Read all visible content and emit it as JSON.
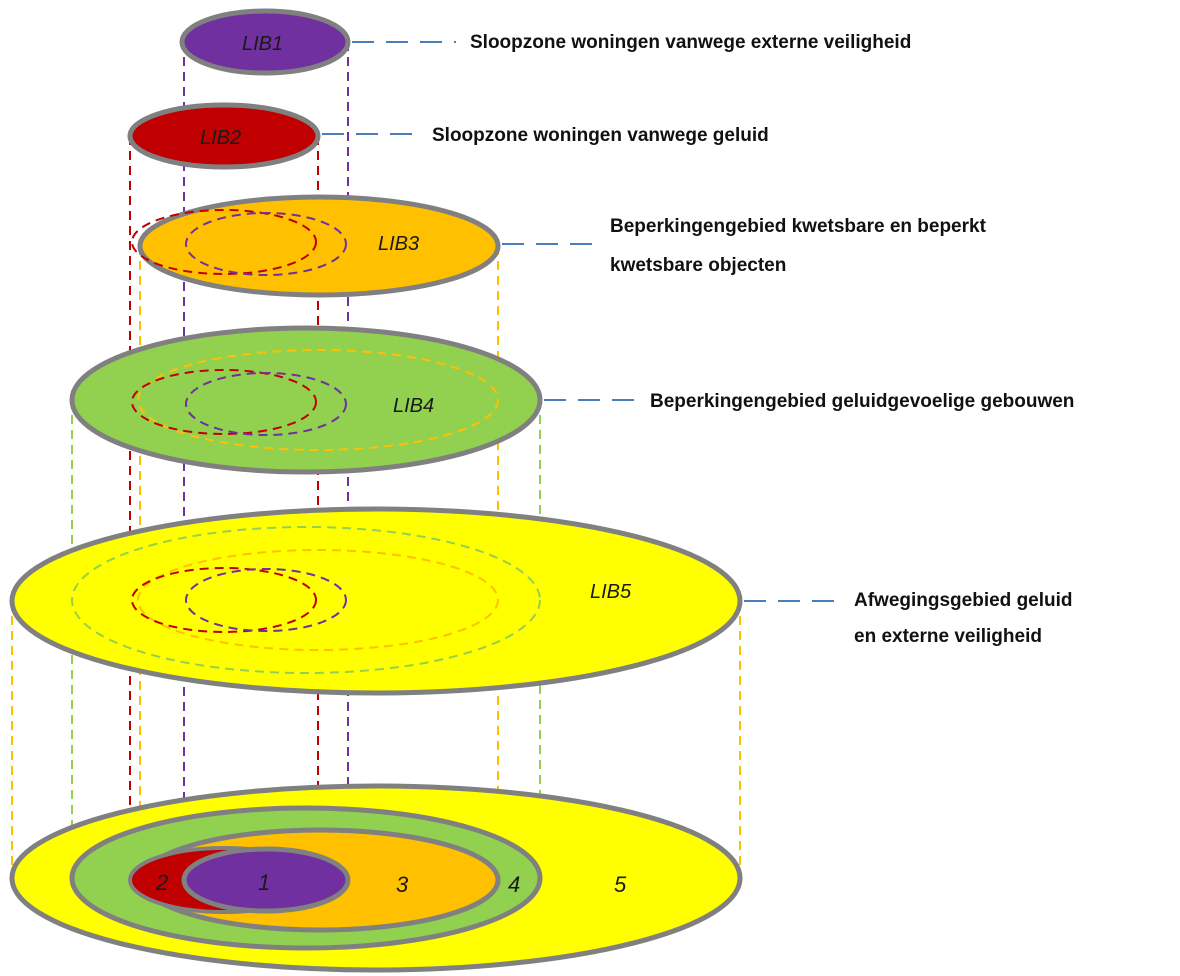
{
  "colors": {
    "lib1": "#7030a0",
    "lib2": "#c00000",
    "lib3": "#ffc000",
    "lib4": "#92d050",
    "lib5": "#ffff00",
    "outline": "#808080",
    "leader": "#4a7ebb"
  },
  "layers": {
    "lib1": {
      "label": "LIB1",
      "description": "Sloopzone woningen vanwege externe veiligheid"
    },
    "lib2": {
      "label": "LIB2",
      "description": "Sloopzone woningen vanwege geluid"
    },
    "lib3": {
      "label": "LIB3",
      "description_line1": "Beperkingengebied kwetsbare en beperkt",
      "description_line2": "kwetsbare objecten"
    },
    "lib4": {
      "label": "LIB4",
      "description": "Beperkingengebied geluidgevoelige gebouwen"
    },
    "lib5": {
      "label": "LIB5",
      "description_line1": "Afwegingsgebied geluid",
      "description_line2": "en externe veiligheid"
    }
  },
  "base_numbers": [
    "1",
    "2",
    "3",
    "4",
    "5"
  ]
}
